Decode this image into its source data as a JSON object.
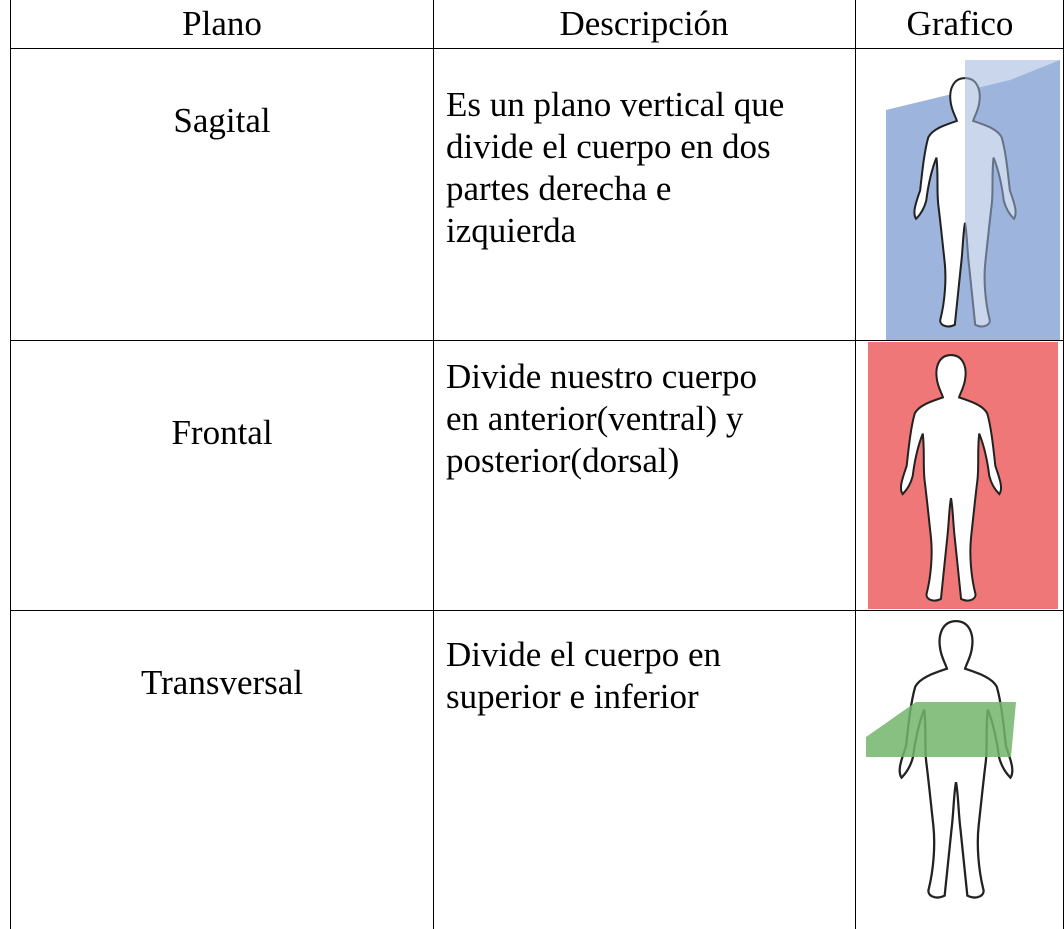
{
  "table": {
    "headers": [
      "Plano",
      "Descripción",
      "Grafico"
    ],
    "rows": [
      {
        "plane": "Sagital",
        "description": [
          "Es un plano vertical que",
          "divide el cuerpo en dos",
          "partes derecha e",
          "izquierda"
        ]
      },
      {
        "plane": "Frontal",
        "description": [
          "Divide nuestro cuerpo",
          "en anterior(ventral) y",
          "posterior(dorsal)"
        ]
      },
      {
        "plane": "Transversal",
        "description": [
          "Divide el cuerpo en",
          "superior e inferior"
        ]
      }
    ]
  }
}
